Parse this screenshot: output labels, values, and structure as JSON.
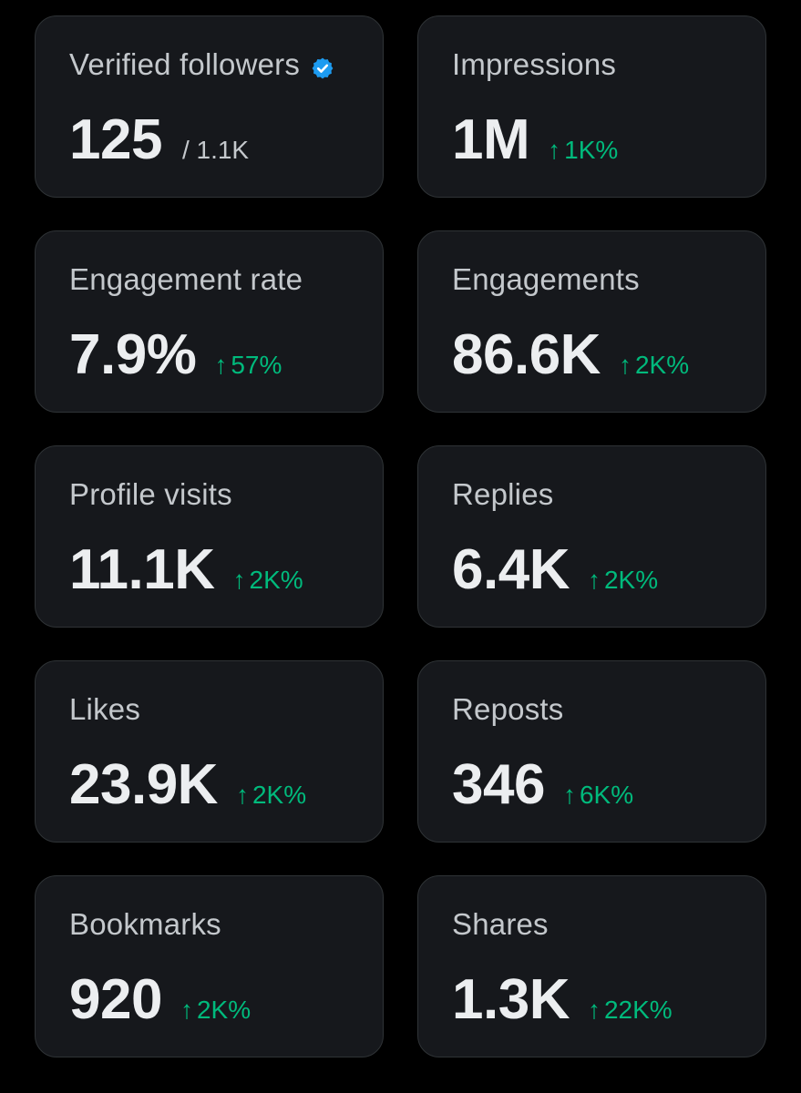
{
  "cards": [
    {
      "label": "Verified followers",
      "value": "125",
      "sub": "/ 1.1K",
      "verified": true
    },
    {
      "label": "Impressions",
      "value": "1M",
      "change": "1K%"
    },
    {
      "label": "Engagement rate",
      "value": "7.9%",
      "change": "57%"
    },
    {
      "label": "Engagements",
      "value": "86.6K",
      "change": "2K%"
    },
    {
      "label": "Profile visits",
      "value": "11.1K",
      "change": "2K%"
    },
    {
      "label": "Replies",
      "value": "6.4K",
      "change": "2K%"
    },
    {
      "label": "Likes",
      "value": "23.9K",
      "change": "2K%"
    },
    {
      "label": "Reposts",
      "value": "346",
      "change": "6K%"
    },
    {
      "label": "Bookmarks",
      "value": "920",
      "change": "2K%"
    },
    {
      "label": "Shares",
      "value": "1.3K",
      "change": "22K%"
    }
  ],
  "arrow_glyph": "↑",
  "colors": {
    "background": "#000000",
    "card": "#16181c",
    "border": "#2f3336",
    "positive": "#00ba7c",
    "verified": "#1d9bf0"
  },
  "icons": {
    "verified": "verified-badge-icon",
    "trend": "arrow-up-icon"
  }
}
